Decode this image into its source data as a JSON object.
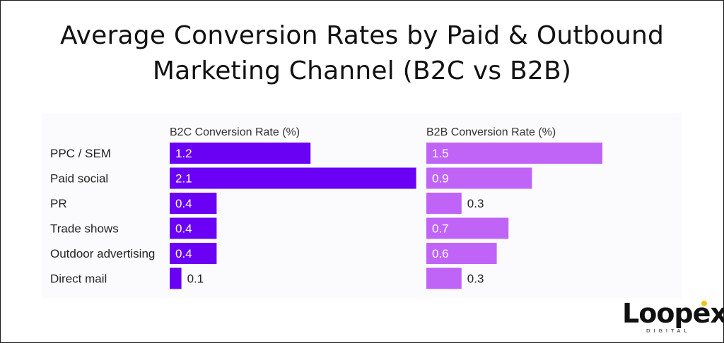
{
  "title_line1": "Average Conversion Rates by Paid & Outbound",
  "title_line2": "Marketing Channel (B2C vs B2B)",
  "logo": {
    "wordmark": "Loopex",
    "tagline": "DIGITAL",
    "accent_color": "#f2c21b"
  },
  "chart_data": {
    "type": "bar",
    "orientation": "horizontal",
    "categories": [
      "PPC / SEM",
      "Paid social",
      "PR",
      "Trade shows",
      "Outdoor advertising",
      "Direct mail"
    ],
    "series": [
      {
        "name": "B2C Conversion Rate (%)",
        "color": "#6a00f4",
        "values": [
          1.2,
          2.1,
          0.4,
          0.4,
          0.4,
          0.1
        ],
        "labels": [
          "1.2",
          "2.1",
          "0.4",
          "0.4",
          "0.4",
          "0.1"
        ]
      },
      {
        "name": "B2B Conversion Rate (%)",
        "color": "#c064f7",
        "values": [
          1.5,
          0.9,
          0.3,
          0.7,
          0.6,
          0.3
        ],
        "labels": [
          "1.5",
          "0.9",
          "0.3",
          "0.7",
          "0.6",
          "0.3"
        ]
      }
    ],
    "grid": false,
    "legend": "column headers"
  }
}
